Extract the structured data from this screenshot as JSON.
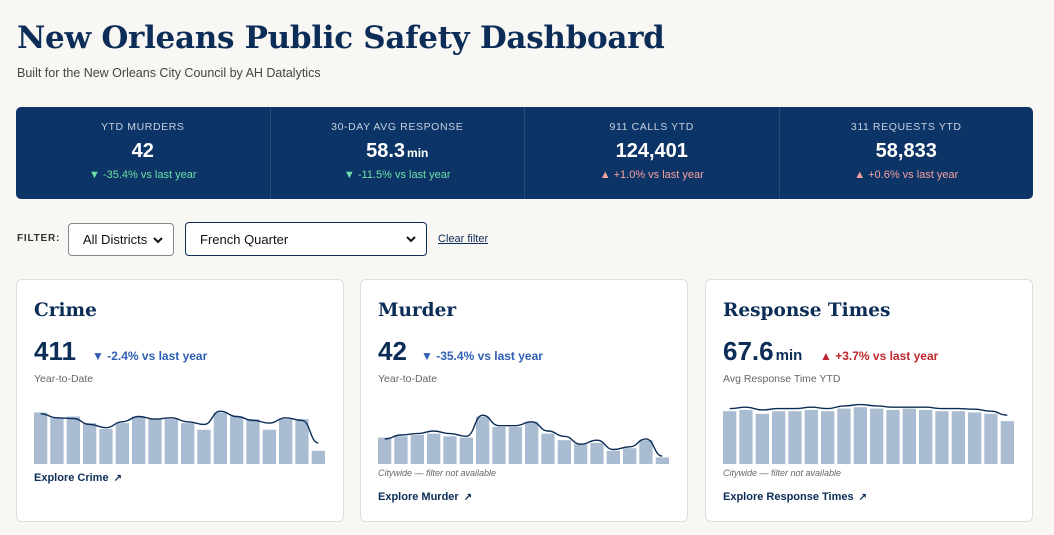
{
  "header": {
    "title": "New Orleans Public Safety Dashboard",
    "subtitle": "Built for the New Orleans City Council by AH Datalytics"
  },
  "kpis": [
    {
      "label": "YTD MURDERS",
      "value": "42",
      "unit": "",
      "change": "▼ -35.4% vs last year",
      "direction": "down"
    },
    {
      "label": "30-DAY AVG RESPONSE",
      "value": "58.3",
      "unit": "min",
      "change": "▼ -11.5% vs last year",
      "direction": "down"
    },
    {
      "label": "911 CALLS YTD",
      "value": "124,401",
      "unit": "",
      "change": "▲ +1.0% vs last year",
      "direction": "up"
    },
    {
      "label": "311 REQUESTS YTD",
      "value": "58,833",
      "unit": "",
      "change": "▲ +0.6% vs last year",
      "direction": "up"
    }
  ],
  "filter": {
    "label": "FILTER:",
    "district": "All Districts",
    "neighborhood": "French Quarter",
    "clear": "Clear filter"
  },
  "cards": [
    {
      "title": "Crime",
      "value": "411",
      "unit": "",
      "change": "▼ -2.4% vs last year",
      "direction": "down",
      "sub": "Year-to-Date",
      "note": "",
      "explore": "Explore Crime",
      "bars": [
        0.78,
        0.7,
        0.72,
        0.62,
        0.53,
        0.62,
        0.72,
        0.68,
        0.68,
        0.62,
        0.52,
        0.78,
        0.72,
        0.68,
        0.52,
        0.68,
        0.68,
        0.2
      ],
      "line": [
        0.76,
        0.7,
        0.69,
        0.6,
        0.55,
        0.64,
        0.72,
        0.68,
        0.7,
        0.64,
        0.6,
        0.8,
        0.72,
        0.66,
        0.62,
        0.7,
        0.66,
        0.32
      ]
    },
    {
      "title": "Murder",
      "value": "42",
      "unit": "",
      "change": "▼ -35.4% vs last year",
      "direction": "down",
      "sub": "Year-to-Date",
      "note": "Citywide — filter not available",
      "explore": "Explore Murder",
      "bars": [
        0.4,
        0.42,
        0.44,
        0.46,
        0.42,
        0.4,
        0.72,
        0.56,
        0.56,
        0.64,
        0.46,
        0.36,
        0.3,
        0.32,
        0.2,
        0.24,
        0.36,
        0.1
      ],
      "line": [
        0.38,
        0.44,
        0.46,
        0.5,
        0.46,
        0.42,
        0.74,
        0.58,
        0.58,
        0.64,
        0.5,
        0.42,
        0.3,
        0.36,
        0.22,
        0.26,
        0.38,
        0.12
      ]
    },
    {
      "title": "Response Times",
      "value": "67.6",
      "unit": "min",
      "change": "▲ +3.7% vs last year",
      "direction": "up",
      "sub": "Avg Response Time YTD",
      "note": "Citywide — filter not available",
      "explore": "Explore Response Times",
      "bars": [
        0.8,
        0.82,
        0.76,
        0.8,
        0.8,
        0.82,
        0.8,
        0.84,
        0.86,
        0.84,
        0.82,
        0.84,
        0.82,
        0.8,
        0.8,
        0.78,
        0.76,
        0.65
      ],
      "line": [
        0.84,
        0.86,
        0.82,
        0.84,
        0.84,
        0.86,
        0.84,
        0.88,
        0.9,
        0.88,
        0.86,
        0.86,
        0.86,
        0.84,
        0.84,
        0.83,
        0.8,
        0.74
      ]
    }
  ],
  "colors": {
    "navy": "#0c2d57",
    "kpi_bg": "#0d3466",
    "bar": "#a9bcd2",
    "down_text": "#2f5fb3",
    "up_text": "#c0262d"
  }
}
